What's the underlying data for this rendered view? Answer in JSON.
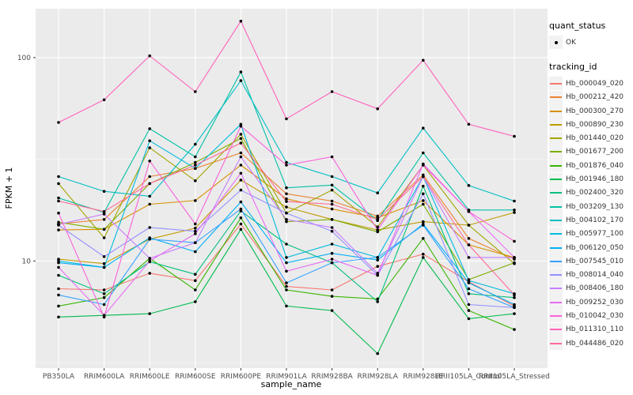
{
  "chart_data": {
    "type": "line",
    "title": "",
    "xlabel": "sample_name",
    "ylabel": "FPKM + 1",
    "y_scale": "log10",
    "y_ticks": [
      10,
      100
    ],
    "y_minor_ticks": [
      3.162,
      31.62
    ],
    "y_domain": [
      2.97,
      174
    ],
    "grid": {
      "panel_color": "#EBEBEB",
      "major_color": "#FFFFFF",
      "minor_color": "#FFFFFF"
    },
    "point_color": "#000000",
    "axis_text_color": "#4D4D4D",
    "categories": [
      "PB350LA",
      "RRIM600LA",
      "RRIM600LE",
      "RRIM600SE",
      "RRIM600PE",
      "RRIM901LA",
      "RRIM928BA",
      "RRIM928LA",
      "RRIM928LE",
      "RRII105LA_Control",
      "RRII105LA_Stressed"
    ],
    "legend": {
      "quant_status": {
        "title": "quant_status",
        "items": [
          {
            "label": "OK",
            "marker": "point",
            "color": "#000000"
          }
        ]
      },
      "tracking_id": {
        "title": "tracking_id"
      }
    },
    "series": [
      {
        "name": "Hb_000049_020",
        "color": "#F8766D",
        "values": [
          7.3,
          7.2,
          8.7,
          8.0,
          15.2,
          7.5,
          7.2,
          9.4,
          10.8,
          7.9,
          6.0
        ]
      },
      {
        "name": "Hb_000212_420",
        "color": "#EA8331",
        "values": [
          15.2,
          16.0,
          26.0,
          28.5,
          34.0,
          21.4,
          19.7,
          16.6,
          26.5,
          12.9,
          10.2
        ]
      },
      {
        "name": "Hb_000300_270",
        "color": "#D89000",
        "values": [
          14.2,
          14.3,
          19.0,
          19.8,
          29.6,
          20.2,
          18.0,
          16.3,
          19.8,
          12.0,
          10.4
        ]
      },
      {
        "name": "Hb_000890_230",
        "color": "#C09B00",
        "values": [
          10.2,
          9.7,
          12.8,
          14.5,
          25.0,
          18.4,
          16.0,
          14.2,
          15.6,
          15.0,
          17.3
        ]
      },
      {
        "name": "Hb_001440_020",
        "color": "#A3A500",
        "values": [
          24.0,
          13.0,
          36.0,
          24.8,
          42.0,
          17.2,
          22.3,
          14.7,
          29.6,
          15.0,
          9.7
        ]
      },
      {
        "name": "Hb_001677_200",
        "color": "#7CAE00",
        "values": [
          15.5,
          14.3,
          24.0,
          30.5,
          40.0,
          15.6,
          16.0,
          13.9,
          19.0,
          8.1,
          9.8
        ]
      },
      {
        "name": "Hb_001876_040",
        "color": "#39B600",
        "values": [
          6.0,
          6.6,
          10.3,
          7.2,
          16.3,
          7.2,
          6.7,
          6.5,
          12.9,
          5.7,
          4.6
        ]
      },
      {
        "name": "Hb_001946_180",
        "color": "#00BB4E",
        "values": [
          5.3,
          5.4,
          5.5,
          6.3,
          14.3,
          6.0,
          5.7,
          3.5,
          10.4,
          5.2,
          5.5
        ]
      },
      {
        "name": "Hb_002400_320",
        "color": "#00BF7D",
        "values": [
          8.5,
          6.9,
          9.9,
          8.6,
          17.6,
          12.1,
          9.8,
          6.3,
          23.3,
          6.9,
          6.6
        ]
      },
      {
        "name": "Hb_003209_130",
        "color": "#00C1A3",
        "values": [
          20.4,
          17.3,
          44.7,
          32.5,
          85.0,
          22.9,
          23.6,
          15.8,
          34.0,
          17.8,
          17.8
        ]
      },
      {
        "name": "Hb_004102_170",
        "color": "#00BFC4",
        "values": [
          26.0,
          22.0,
          20.8,
          37.5,
          77.0,
          30.5,
          26.0,
          21.6,
          45.0,
          23.5,
          19.7
        ]
      },
      {
        "name": "Hb_005977_100",
        "color": "#00BAE0",
        "values": [
          10.0,
          9.3,
          39.0,
          28.5,
          47.0,
          10.4,
          12.1,
          10.4,
          26.0,
          8.0,
          6.9
        ]
      },
      {
        "name": "Hb_006120_050",
        "color": "#00B0F6",
        "values": [
          9.8,
          9.3,
          13.0,
          11.1,
          19.5,
          9.8,
          10.9,
          10.1,
          15.2,
          7.8,
          6.1
        ]
      },
      {
        "name": "Hb_007545_010",
        "color": "#35A2FF",
        "values": [
          6.8,
          6.1,
          12.8,
          12.3,
          18.0,
          7.8,
          9.8,
          10.4,
          15.0,
          7.3,
          5.9
        ]
      },
      {
        "name": "Hb_008014_040",
        "color": "#9590FF",
        "values": [
          15.0,
          10.5,
          14.6,
          14.0,
          22.3,
          17.2,
          14.0,
          8.5,
          21.4,
          6.1,
          5.9
        ]
      },
      {
        "name": "Hb_008406_180",
        "color": "#C77CFF",
        "values": [
          15.1,
          17.0,
          10.3,
          12.3,
          32.5,
          16.0,
          14.6,
          8.7,
          26.0,
          10.4,
          10.4
        ]
      },
      {
        "name": "Hb_009252_030",
        "color": "#E76BF3",
        "values": [
          9.3,
          5.4,
          10.0,
          13.6,
          27.0,
          8.9,
          10.2,
          8.5,
          30.0,
          17.5,
          10.4
        ]
      },
      {
        "name": "Hb_010042_030",
        "color": "#FA62DB",
        "values": [
          17.2,
          5.3,
          31.0,
          15.2,
          46.0,
          29.6,
          32.5,
          14.2,
          29.6,
          17.5,
          12.5
        ]
      },
      {
        "name": "Hb_011310_110",
        "color": "#FF62BC",
        "values": [
          48.0,
          62.0,
          102.0,
          68.0,
          151.0,
          50.0,
          68.0,
          56.0,
          97.0,
          47.0,
          41.0
        ]
      },
      {
        "name": "Hb_044486_020",
        "color": "#FF6A98",
        "values": [
          19.7,
          17.5,
          24.0,
          29.6,
          38.0,
          19.6,
          19.0,
          16.0,
          26.0,
          12.0,
          6.8
        ]
      }
    ]
  }
}
